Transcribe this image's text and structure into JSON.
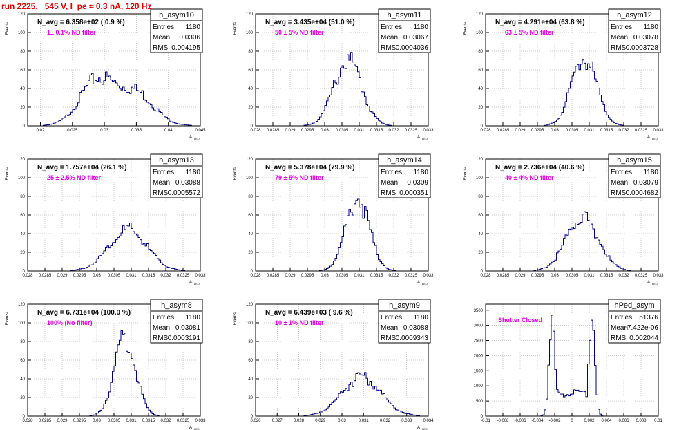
{
  "page_title": "run 2225,   545 V, I_pe ≈ 0.3 nA, 120 Hz",
  "colors": {
    "line": "#00007f",
    "frame": "#000000",
    "grid": "#9a9a9a",
    "annotation": "#e000e0",
    "title": "#e00000"
  },
  "chart_data": [
    {
      "type": "histogram",
      "name": "h_asym10",
      "nlabel": "N_avg = 6.358e+02 ( 0.9 %)",
      "filter": "1± 0.1% ND filter",
      "stats": [
        [
          "Entries",
          "1180"
        ],
        [
          "Mean",
          "0.0306"
        ],
        [
          "RMS",
          "0.004195"
        ]
      ],
      "xlabel": "A_LED",
      "ylabel": "Events",
      "xlim": [
        0.018,
        0.045
      ],
      "ylim": [
        0,
        120
      ],
      "xticks": [
        0.02,
        0.025,
        0.03,
        0.035,
        0.04,
        0.045
      ],
      "xticklabels": [
        "0.02",
        "0.025",
        "0.03",
        "0.035",
        "0.04",
        "0.045"
      ],
      "yticks": [
        0,
        20,
        40,
        60,
        80,
        100,
        120
      ],
      "yticklabels": [
        "0",
        "20",
        "40",
        "60",
        "80",
        "100",
        "120"
      ],
      "peaks": [
        [
          0.0285,
          0.0025,
          32
        ],
        [
          0.032,
          0.004,
          26
        ],
        [
          0.0355,
          0.0025,
          18
        ]
      ],
      "tail": 0.5
    },
    {
      "type": "histogram",
      "name": "h_asym11",
      "nlabel": "N_avg = 3.435e+04 (51.0 %)",
      "filter": "50 ± 5% ND filter",
      "stats": [
        [
          "Entries",
          "1180"
        ],
        [
          "Mean",
          "0.03067"
        ],
        [
          "RMS",
          "0.0004036"
        ]
      ],
      "xlabel": "A_LED",
      "ylabel": "Events",
      "xlim": [
        0.028,
        0.033
      ],
      "ylim": [
        0,
        120
      ],
      "xticks": [
        0.028,
        0.0285,
        0.029,
        0.0295,
        0.03,
        0.0305,
        0.031,
        0.0315,
        0.032,
        0.0325,
        0.033
      ],
      "xticklabels": [
        "0.028",
        "0.0285",
        "0.029",
        "0.0295",
        "0.03",
        "0.0305",
        "0.031",
        "0.0315",
        "0.032",
        "0.0325",
        "0.033"
      ],
      "yticks": [
        0,
        20,
        40,
        60,
        80,
        100,
        120
      ],
      "yticklabels": [
        "0",
        "20",
        "40",
        "60",
        "80",
        "100",
        "120"
      ],
      "peaks": [
        [
          0.03067,
          0.0004,
          70
        ]
      ],
      "tail": 0.5
    },
    {
      "type": "histogram",
      "name": "h_asym12",
      "nlabel": "N_avg = 4.291e+04 (63.8 %)",
      "filter": "63 ± 5% ND filter",
      "stats": [
        [
          "Entries",
          "1180"
        ],
        [
          "Mean",
          "0.03078"
        ],
        [
          "RMS",
          "0.0003728"
        ]
      ],
      "xlabel": "A_LED",
      "ylabel": "Events",
      "xlim": [
        0.028,
        0.033
      ],
      "ylim": [
        0,
        120
      ],
      "xticks": [
        0.028,
        0.0285,
        0.029,
        0.0295,
        0.03,
        0.0305,
        0.031,
        0.0315,
        0.032,
        0.0325,
        0.033
      ],
      "xticklabels": [
        "0.028",
        "0.0285",
        "0.029",
        "0.0295",
        "0.03",
        "0.0305",
        "0.031",
        "0.0315",
        "0.032",
        "0.0325",
        "0.033"
      ],
      "yticks": [
        0,
        20,
        40,
        60,
        80,
        100,
        120
      ],
      "yticklabels": [
        "0",
        "20",
        "40",
        "60",
        "80",
        "100",
        "120"
      ],
      "peaks": [
        [
          0.03085,
          0.00036,
          72
        ]
      ],
      "tail": 0.5
    },
    {
      "type": "histogram",
      "name": "h_asym13",
      "nlabel": "N_avg = 1.757e+04 (26.1 %)",
      "filter": "25 ± 2.5% ND filter",
      "stats": [
        [
          "Entries",
          "1180"
        ],
        [
          "Mean",
          "0.03088"
        ],
        [
          "RMS",
          "0.0005572"
        ]
      ],
      "xlabel": "A_LED",
      "ylabel": "Events",
      "xlim": [
        0.028,
        0.033
      ],
      "ylim": [
        0,
        120
      ],
      "xticks": [
        0.028,
        0.0285,
        0.029,
        0.0295,
        0.03,
        0.0305,
        0.031,
        0.0315,
        0.032,
        0.0325,
        0.033
      ],
      "xticklabels": [
        "0.028",
        "0.0285",
        "0.029",
        "0.0295",
        "0.03",
        "0.0305",
        "0.031",
        "0.0315",
        "0.032",
        "0.0325",
        "0.033"
      ],
      "yticks": [
        0,
        20,
        40,
        60,
        80,
        100,
        120
      ],
      "yticklabels": [
        "0",
        "20",
        "40",
        "60",
        "80",
        "100",
        "120"
      ],
      "peaks": [
        [
          0.0309,
          0.00055,
          44
        ]
      ],
      "tail": 0.5
    },
    {
      "type": "histogram",
      "name": "h_asym14",
      "nlabel": "N_avg = 5.378e+04 (79.9 %)",
      "filter": "79 ± 5% ND filter",
      "stats": [
        [
          "Entries",
          "1180"
        ],
        [
          "Mean",
          "0.0309"
        ],
        [
          "RMS",
          "0.000351"
        ]
      ],
      "xlabel": "A_LED",
      "ylabel": "Events",
      "xlim": [
        0.028,
        0.033
      ],
      "ylim": [
        0,
        120
      ],
      "xticks": [
        0.028,
        0.0285,
        0.029,
        0.0295,
        0.03,
        0.0305,
        0.031,
        0.0315,
        0.032,
        0.0325,
        0.033
      ],
      "xticklabels": [
        "0.028",
        "0.0285",
        "0.029",
        "0.0295",
        "0.03",
        "0.0305",
        "0.031",
        "0.0315",
        "0.032",
        "0.0325",
        "0.033"
      ],
      "yticks": [
        0,
        20,
        40,
        60,
        80,
        100,
        120
      ],
      "yticklabels": [
        "0",
        "20",
        "40",
        "60",
        "80",
        "100",
        "120"
      ],
      "peaks": [
        [
          0.03095,
          0.00034,
          78
        ]
      ],
      "tail": 0.5
    },
    {
      "type": "histogram",
      "name": "h_asym15",
      "nlabel": "N_avg = 2.736e+04 (40.6 %)",
      "filter": "40 ± 4% ND filter",
      "stats": [
        [
          "Entries",
          "1180"
        ],
        [
          "Mean",
          "0.03079"
        ],
        [
          "RMS",
          "0.0004682"
        ]
      ],
      "xlabel": "A_LED",
      "ylabel": "Events",
      "xlim": [
        0.028,
        0.033
      ],
      "ylim": [
        0,
        120
      ],
      "xticks": [
        0.028,
        0.0285,
        0.029,
        0.0295,
        0.03,
        0.0305,
        0.031,
        0.0315,
        0.032,
        0.0325,
        0.033
      ],
      "xticklabels": [
        "0.028",
        "0.0285",
        "0.029",
        "0.0295",
        "0.03",
        "0.0305",
        "0.031",
        "0.0315",
        "0.032",
        "0.0325",
        "0.033"
      ],
      "yticks": [
        0,
        20,
        40,
        60,
        80,
        100,
        120
      ],
      "yticklabels": [
        "0",
        "20",
        "40",
        "60",
        "80",
        "100",
        "120"
      ],
      "peaks": [
        [
          0.0308,
          0.00046,
          58
        ]
      ],
      "tail": 0.5
    },
    {
      "type": "histogram",
      "name": "h_asym8",
      "nlabel": "N_avg = 6.731e+04 (100.0 %)",
      "filter": "100% (No filter)",
      "stats": [
        [
          "Entries",
          "1180"
        ],
        [
          "Mean",
          "0.03081"
        ],
        [
          "RMS",
          "0.0003191"
        ]
      ],
      "xlabel": "A_LED",
      "ylabel": "Events",
      "xlim": [
        0.028,
        0.033
      ],
      "ylim": [
        0,
        120
      ],
      "xticks": [
        0.028,
        0.0285,
        0.029,
        0.0295,
        0.03,
        0.0305,
        0.031,
        0.0315,
        0.032,
        0.0325,
        0.033
      ],
      "xticklabels": [
        "0.028",
        "0.0285",
        "0.029",
        "0.0295",
        "0.03",
        "0.0305",
        "0.031",
        "0.0315",
        "0.032",
        "0.0325",
        "0.033"
      ],
      "yticks": [
        0,
        20,
        40,
        60,
        80,
        100,
        120
      ],
      "yticklabels": [
        "0",
        "20",
        "40",
        "60",
        "80",
        "100",
        "120"
      ],
      "peaks": [
        [
          0.03082,
          0.00031,
          82
        ]
      ],
      "tail": 0.5
    },
    {
      "type": "histogram",
      "name": "h_asym9",
      "nlabel": "N_avg = 6.439e+03 ( 9.6 %)",
      "filter": "10 ± 1% ND filter",
      "stats": [
        [
          "Entries",
          "1180"
        ],
        [
          "Mean",
          "0.03088"
        ],
        [
          "RMS",
          "0.0009343"
        ]
      ],
      "xlabel": "A_LED",
      "ylabel": "Events",
      "xlim": [
        0.026,
        0.034
      ],
      "ylim": [
        0,
        120
      ],
      "xticks": [
        0.026,
        0.027,
        0.028,
        0.029,
        0.03,
        0.031,
        0.032,
        0.033,
        0.034
      ],
      "xticklabels": [
        "0.026",
        "0.027",
        "0.028",
        "0.029",
        "0.03",
        "0.031",
        "0.032",
        "0.033",
        "0.034"
      ],
      "yticks": [
        0,
        20,
        40,
        60,
        80,
        100,
        120
      ],
      "yticklabels": [
        "0",
        "20",
        "40",
        "60",
        "80",
        "100",
        "120"
      ],
      "peaks": [
        [
          0.0309,
          0.0009,
          42
        ]
      ],
      "tail": 0.5
    },
    {
      "type": "histogram",
      "name": "hPed_asym",
      "nlabel": "",
      "filter": "Shutter Closed",
      "stats": [
        [
          "Entries",
          "51376"
        ],
        [
          "Mean",
          "-7.422e-06"
        ],
        [
          "RMS",
          "0.002044"
        ]
      ],
      "xlabel": "",
      "ylabel": "",
      "xlim": [
        -0.01,
        0.01
      ],
      "ylim": [
        0,
        3700
      ],
      "xticks": [
        -0.01,
        -0.008,
        -0.006,
        -0.004,
        -0.002,
        0,
        0.002,
        0.004,
        0.006,
        0.008,
        0.01
      ],
      "xticklabels": [
        "-0.01",
        "-0.008",
        "-0.006",
        "-0.004",
        "-0.002",
        "0",
        "0.002",
        "0.004",
        "0.006",
        "0.008",
        "0.01"
      ],
      "yticks": [
        0,
        500,
        1000,
        1500,
        2000,
        2500,
        3000,
        3500
      ],
      "yticklabels": [
        "0",
        "500",
        "1000",
        "1500",
        "2000",
        "2500",
        "3000",
        "3500"
      ],
      "peaks": [
        [
          -0.0023,
          0.00035,
          2950
        ],
        [
          0.0023,
          0.00035,
          3400
        ]
      ],
      "baseline": [
        -0.0021,
        0.0021,
        750
      ],
      "tail": 0
    }
  ]
}
